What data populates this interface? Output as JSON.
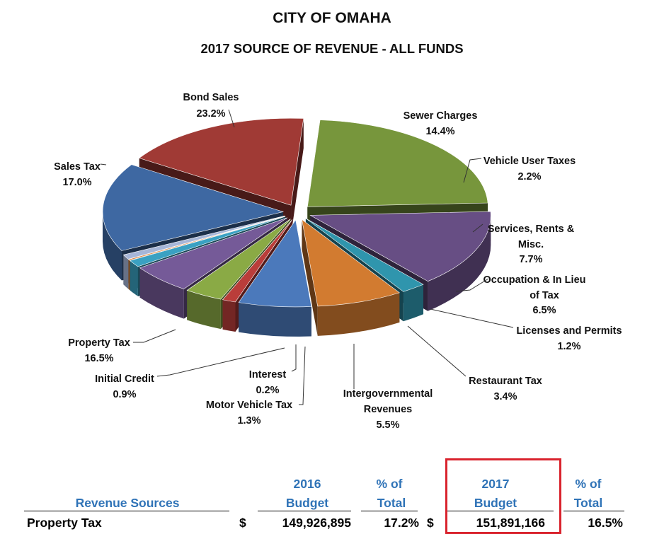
{
  "title": "CITY OF OMAHA",
  "subtitle": "2017 SOURCE OF REVENUE - ALL FUNDS",
  "chart_data": {
    "type": "pie",
    "title": "CITY OF OMAHA",
    "subtitle": "2017 SOURCE OF REVENUE - ALL FUNDS",
    "slices": [
      {
        "label": "Bond Sales",
        "value": 23.2,
        "value_label": "23.2%",
        "color": "#77963c"
      },
      {
        "label": "Sewer Charges",
        "value": 14.4,
        "value_label": "14.4%",
        "color": "#674e84"
      },
      {
        "label": "Vehicle User Taxes",
        "value": 2.2,
        "value_label": "2.2%",
        "color": "#2f95ad"
      },
      {
        "label": "Services, Rents & Misc.",
        "value": 7.7,
        "value_label": "7.7%",
        "color": "#d27b30"
      },
      {
        "label": "Occupation & In Lieu of Tax",
        "value": 6.5,
        "value_label": "6.5%",
        "color": "#4b79bb"
      },
      {
        "label": "Licenses and Permits",
        "value": 1.2,
        "value_label": "1.2%",
        "color": "#ba3d3a"
      },
      {
        "label": "Restaurant Tax",
        "value": 3.4,
        "value_label": "3.4%",
        "color": "#8aaa45"
      },
      {
        "label": "Intergovernmental Revenues",
        "value": 5.5,
        "value_label": "5.5%",
        "color": "#755a98"
      },
      {
        "label": "Motor Vehicle Tax",
        "value": 1.3,
        "value_label": "1.3%",
        "color": "#3aa1c2"
      },
      {
        "label": "Interest",
        "value": 0.2,
        "value_label": "0.2%",
        "color": "#e07e2e"
      },
      {
        "label": "Initial Credit",
        "value": 0.9,
        "value_label": "0.9%",
        "color": "#a6b6d8"
      },
      {
        "label": "Property Tax",
        "value": 16.5,
        "value_label": "16.5%",
        "color": "#3e68a2"
      },
      {
        "label": "Sales Tax",
        "value": 17.0,
        "value_label": "17.0%",
        "color": "#a03a35"
      }
    ]
  },
  "table": {
    "headers": {
      "sources": "Revenue Sources",
      "budget_2016": [
        "2016",
        "Budget"
      ],
      "pct_2016": [
        "% of",
        "Total"
      ],
      "budget_2017": [
        "2017",
        "Budget"
      ],
      "pct_2017": [
        "% of",
        "Total"
      ]
    },
    "rows": [
      {
        "source": "Property Tax",
        "currency_2016": "$",
        "budget_2016": "149,926,895",
        "pct_2016": "17.2%",
        "currency_2017": "$",
        "budget_2017": "151,891,166",
        "pct_2017": "16.5%"
      }
    ],
    "highlight_color": "#d9232d",
    "header_color": "#2f73b7"
  }
}
